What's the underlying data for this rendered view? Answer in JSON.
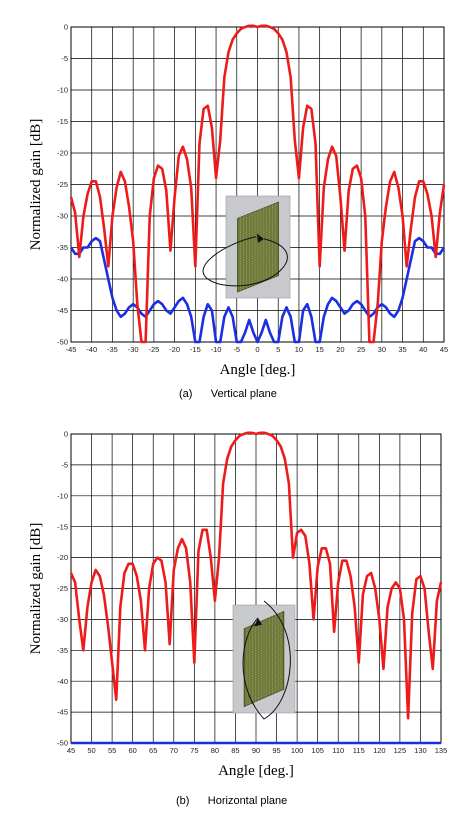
{
  "colors": {
    "co_polar": "#ee1b1b",
    "cross_polar": "#1a2fe0",
    "grid": "#000000",
    "antenna_face": "#6d7a3a",
    "antenna_bg": "#c7c9cc"
  },
  "chart_data": [
    {
      "type": "line",
      "caption": "(a)      Vertical plane",
      "xlabel": "Angle [deg.]",
      "ylabel": "Normalized gain [dB]",
      "xlim": [
        -45,
        45
      ],
      "ylim": [
        -50,
        0
      ],
      "xticks": [
        "-45",
        "-40",
        "-35",
        "-30",
        "-25",
        "-20",
        "-15",
        "-10",
        "-5",
        "0",
        "5",
        "10",
        "15",
        "20",
        "25",
        "30",
        "35",
        "40",
        "45"
      ],
      "yticks": [
        "0",
        "-5",
        "-10",
        "-15",
        "-20",
        "-25",
        "-30",
        "-35",
        "-40",
        "-45",
        "-50"
      ],
      "grid": true,
      "series": [
        {
          "color": "#ee1b1b",
          "x": [
            -45,
            -44,
            -43,
            -42,
            -41,
            -40,
            -39,
            -38,
            -37,
            -36,
            -35,
            -34,
            -33,
            -32,
            -31,
            -30,
            -29,
            -28,
            -27,
            -26,
            -25,
            -24,
            -23,
            -22,
            -21,
            -20,
            -19,
            -18,
            -17,
            -16,
            -15,
            -14,
            -13,
            -12,
            -11,
            -10,
            -9,
            -8,
            -7,
            -6,
            -5,
            -4,
            -3,
            -2,
            -1,
            0,
            1,
            2,
            3,
            4,
            5,
            6,
            7,
            8,
            9,
            10,
            11,
            12,
            13,
            14,
            15,
            16,
            17,
            18,
            19,
            20,
            21,
            22,
            23,
            24,
            25,
            26,
            27,
            28,
            29,
            30,
            31,
            32,
            33,
            34,
            35,
            36,
            37,
            38,
            39,
            40,
            41,
            42,
            43,
            44,
            45
          ],
          "y": [
            -27,
            -29.5,
            -36.5,
            -30,
            -26.5,
            -24.5,
            -24.5,
            -27,
            -32,
            -38,
            -30,
            -25.5,
            -23,
            -24.5,
            -28.5,
            -34,
            -44,
            -50,
            -50,
            -30,
            -24,
            -22,
            -22.5,
            -26,
            -35.5,
            -27,
            -20.5,
            -19,
            -21,
            -25.5,
            -38,
            -18.5,
            -13,
            -12.5,
            -16,
            -24,
            -18,
            -8,
            -4,
            -2,
            -1,
            -0.3,
            0,
            0.2,
            0.2,
            0,
            0.2,
            0.2,
            0,
            -0.3,
            -1,
            -2,
            -4,
            -8,
            -18,
            -24,
            -16,
            -12.5,
            -13,
            -18.5,
            -38,
            -25.5,
            -21,
            -19,
            -20.5,
            -27,
            -35.5,
            -26,
            -22.5,
            -22,
            -24,
            -30,
            -50,
            -50,
            -44,
            -34,
            -28.5,
            -24.5,
            -23,
            -25.5,
            -30,
            -38,
            -32,
            -27,
            -24.5,
            -24.5,
            -26.5,
            -30,
            -36.5,
            -29.5,
            -25
          ]
        },
        {
          "color": "#1a2fe0",
          "x": [
            -45,
            -44,
            -43,
            -42,
            -41,
            -40,
            -39,
            -38,
            -37,
            -36,
            -35,
            -34,
            -33,
            -32,
            -31,
            -30,
            -29,
            -28,
            -27,
            -26,
            -25,
            -24,
            -23,
            -22,
            -21,
            -20,
            -19,
            -18,
            -17,
            -16,
            -15,
            -14,
            -13,
            -12,
            -11,
            -10,
            -9,
            -8,
            -7,
            -6,
            -5,
            -4,
            -3,
            -2,
            -1,
            0,
            1,
            2,
            3,
            4,
            5,
            6,
            7,
            8,
            9,
            10,
            11,
            12,
            13,
            14,
            15,
            16,
            17,
            18,
            19,
            20,
            21,
            22,
            23,
            24,
            25,
            26,
            27,
            28,
            29,
            30,
            31,
            32,
            33,
            34,
            35,
            36,
            37,
            38,
            39,
            40,
            41,
            42,
            43,
            44,
            45
          ],
          "y": [
            -35,
            -36,
            -36,
            -35,
            -35,
            -34,
            -33.5,
            -34,
            -37,
            -40,
            -43,
            -45,
            -46,
            -45.5,
            -44.5,
            -44,
            -44.5,
            -45.5,
            -46,
            -45,
            -44,
            -43.5,
            -44,
            -45,
            -45.5,
            -44.5,
            -43.5,
            -43,
            -44,
            -46,
            -50,
            -50,
            -46,
            -44,
            -45,
            -50,
            -50,
            -46,
            -44.5,
            -46,
            -50,
            -50,
            -48.5,
            -46.5,
            -48.5,
            -50,
            -48.5,
            -46.5,
            -48.5,
            -50,
            -50,
            -46,
            -44.5,
            -46,
            -50,
            -50,
            -45,
            -44,
            -46,
            -50,
            -50,
            -46,
            -44,
            -43,
            -43.5,
            -44.5,
            -45.5,
            -45,
            -44,
            -43.5,
            -44,
            -45,
            -46,
            -45.5,
            -44.5,
            -44,
            -44.5,
            -45.5,
            -46,
            -45,
            -43,
            -40,
            -37,
            -34,
            -33.5,
            -34,
            -35,
            -35,
            -36,
            -36,
            -35
          ]
        }
      ]
    },
    {
      "type": "line",
      "caption": "(b)      Horizontal plane",
      "xlabel": "Angle [deg.]",
      "ylabel": "Normalized gain [dB]",
      "xlim": [
        45,
        135
      ],
      "ylim": [
        -50,
        0
      ],
      "xticks": [
        "45",
        "50",
        "55",
        "60",
        "65",
        "70",
        "75",
        "80",
        "85",
        "90",
        "95",
        "100",
        "105",
        "110",
        "115",
        "120",
        "125",
        "130",
        "135"
      ],
      "yticks": [
        "0",
        "-5",
        "-10",
        "-15",
        "-20",
        "-25",
        "-30",
        "-35",
        "-40",
        "-45",
        "-50"
      ],
      "grid": true,
      "series": [
        {
          "color": "#ee1b1b",
          "x": [
            45,
            46,
            47,
            48,
            49,
            50,
            51,
            52,
            53,
            54,
            55,
            56,
            57,
            58,
            59,
            60,
            61,
            62,
            63,
            64,
            65,
            66,
            67,
            68,
            69,
            70,
            71,
            72,
            73,
            74,
            75,
            76,
            77,
            78,
            79,
            80,
            81,
            82,
            83,
            84,
            85,
            86,
            87,
            88,
            89,
            90,
            91,
            92,
            93,
            94,
            95,
            96,
            97,
            98,
            99,
            100,
            101,
            102,
            103,
            104,
            105,
            106,
            107,
            108,
            109,
            110,
            111,
            112,
            113,
            114,
            115,
            116,
            117,
            118,
            119,
            120,
            121,
            122,
            123,
            124,
            125,
            126,
            127,
            128,
            129,
            130,
            131,
            132,
            133,
            134,
            135
          ],
          "y": [
            -22.5,
            -24,
            -30,
            -35,
            -28,
            -24,
            -22,
            -23,
            -26,
            -31,
            -37,
            -43,
            -28,
            -22.5,
            -21,
            -21,
            -23,
            -27,
            -35,
            -25,
            -21,
            -20,
            -20.5,
            -24,
            -34,
            -22,
            -18.5,
            -17,
            -18.5,
            -24,
            -37,
            -19,
            -15.5,
            -15.5,
            -20,
            -27,
            -20,
            -8,
            -4,
            -2,
            -1,
            -0.3,
            0,
            0.2,
            0.2,
            0,
            0.2,
            0.2,
            0,
            -0.3,
            -1,
            -2,
            -4,
            -8,
            -20,
            -16,
            -15.5,
            -16.5,
            -21,
            -30,
            -21.5,
            -18.5,
            -18.5,
            -21,
            -32,
            -24,
            -20.5,
            -20.5,
            -23,
            -28,
            -37,
            -26,
            -23,
            -22.5,
            -25,
            -30,
            -38,
            -28,
            -25,
            -24,
            -25,
            -30,
            -46,
            -29,
            -23.5,
            -23,
            -25,
            -32,
            -38,
            -27,
            -24
          ]
        },
        {
          "color": "#1a2fe0",
          "x": [
            45,
            135
          ],
          "y": [
            -50,
            -50
          ]
        }
      ]
    }
  ]
}
